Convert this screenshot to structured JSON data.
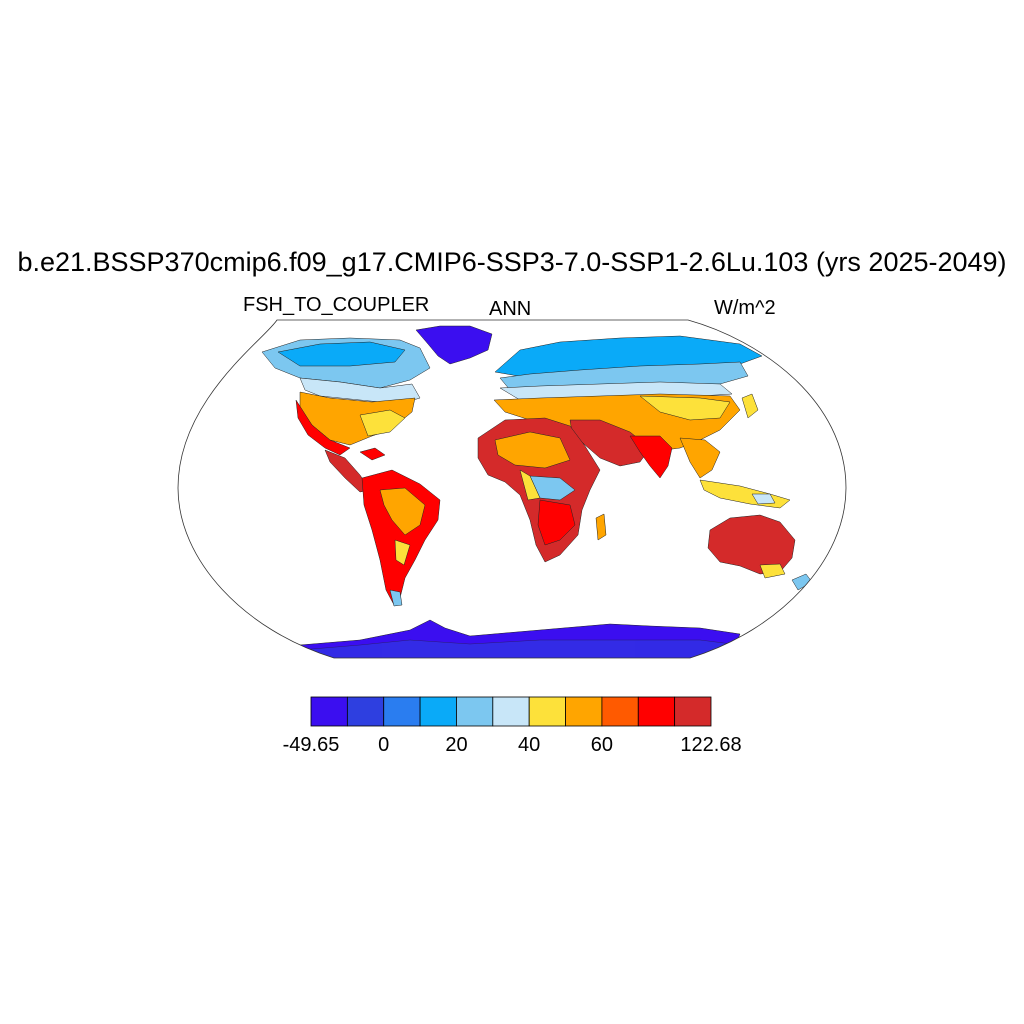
{
  "title": "b.e21.BSSP370cmip6.f09_g17.CMIP6-SSP3-7.0-SSP1-2.6Lu.103 (yrs 2025-2049)",
  "subtitle_left": "FSH_TO_COUPLER",
  "subtitle_center": "ANN",
  "subtitle_right": "W/m^2",
  "colorbar": {
    "colors": [
      "#3b0ef0",
      "#2e3fe0",
      "#2a7df0",
      "#0aaaf8",
      "#7cc7f0",
      "#c8e6f8",
      "#fde13a",
      "#ffa500",
      "#ff5a00",
      "#ff0000",
      "#d42a2a"
    ],
    "labels": [
      "-49.65",
      "",
      "0",
      "",
      "20",
      "",
      "40",
      "",
      "60",
      "",
      "122.68"
    ]
  },
  "map": {
    "projection": "Robinson",
    "colors": {
      "cold": "#3b0ef0",
      "blue": "#2e3fe0",
      "sky": "#0aaaf8",
      "lightblue": "#7cc7f0",
      "pale": "#c8e6f8",
      "yellow": "#fde13a",
      "orange": "#ffa500",
      "redorange": "#ff5a00",
      "red": "#ff0000",
      "darkred": "#d42a2a"
    }
  }
}
